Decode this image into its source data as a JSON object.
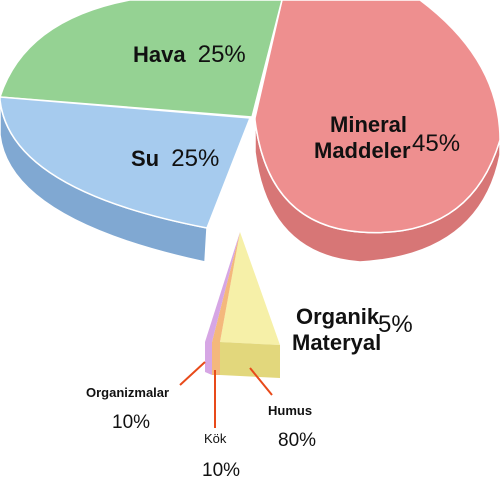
{
  "chart_data": {
    "type": "pie",
    "title": "",
    "slices": [
      {
        "label_lines": [
          "Mineral",
          "Maddeler"
        ],
        "pct_text": "45%",
        "value": 45,
        "color": "#ee8f8f",
        "side": "#d77676"
      },
      {
        "label_lines": [
          "Hava"
        ],
        "pct_text": "25%",
        "value": 25,
        "color": "#95d293",
        "side": "#74b472"
      },
      {
        "label_lines": [
          "Su"
        ],
        "pct_text": "25%",
        "value": 25,
        "color": "#a6cbee",
        "side": "#80a8d2"
      },
      {
        "label_lines": [
          "Organik",
          "Materyal"
        ],
        "pct_text": "5%",
        "value": 5,
        "color": "#f6eda3",
        "side": "#e2d77c"
      }
    ],
    "breakdown": {
      "parent": "Organik Materyal",
      "parts": [
        {
          "label": "Organizmalar",
          "pct_text": "10%",
          "value": 10,
          "color": "#d6a6e4"
        },
        {
          "label": "Kök",
          "pct_text": "10%",
          "value": 10,
          "color": "#f4b87c"
        },
        {
          "label": "Humus",
          "pct_text": "80%",
          "value": 80,
          "color": "#f6f0a8"
        }
      ]
    },
    "leader_color": "#e84a1a"
  }
}
